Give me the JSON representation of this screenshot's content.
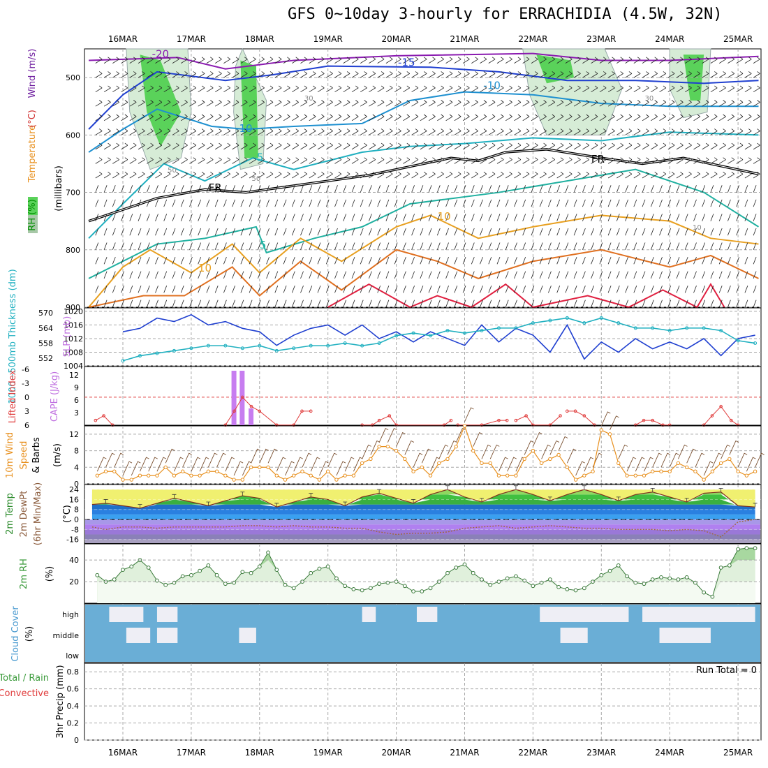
{
  "title": "GFS 0~10day 3-hourly for ERRACHIDIA (4.5W, 32N)",
  "run_total_label": "Run Total = 0",
  "dates": [
    "16MAR",
    "17MAR",
    "18MAR",
    "19MAR",
    "20MAR",
    "21MAR",
    "22MAR",
    "23MAR",
    "24MAR",
    "25MAR"
  ],
  "colors": {
    "grid": "#a8a8a8",
    "pressure_blue": "#1f3fd0",
    "thickness_cyan": "#20b0c0",
    "cape_purple": "#c77df0",
    "lifted_red": "#e03c3c",
    "wind_orange": "#e8901e",
    "rh_green": "#3a9a3a",
    "cloud_blue": "#6aaed6",
    "cloud_white": "#eeeef5"
  },
  "chart_data": [
    {
      "type": "heatmap",
      "name": "upper-air",
      "ylabel_parts": [
        {
          "text": "RH (%)",
          "color": "#009000"
        },
        {
          "text": "Temperature",
          "color": "#e8901e"
        },
        {
          "text": "(°C)",
          "color": "#d03030"
        },
        {
          "text": "Wind (m/s)",
          "color": "#7020a0"
        },
        {
          "text": "(millibars)",
          "color": "#000000"
        }
      ],
      "yticks": [
        500,
        600,
        700,
        800,
        900
      ],
      "ylim": [
        900,
        450
      ],
      "contour_labels": [
        {
          "text": "-20",
          "day": 0.55,
          "p": 465,
          "color": "#8a1ab0"
        },
        {
          "text": "-15",
          "day": 4.15,
          "p": 480,
          "color": "#1f3fd0"
        },
        {
          "text": "-10",
          "day": 5.4,
          "p": 520,
          "color": "#1e90d0"
        },
        {
          "text": "-10",
          "day": 1.77,
          "p": 595,
          "color": "#1e90d0"
        },
        {
          "text": "-5",
          "day": 1.98,
          "p": 645,
          "color": "#20b0c0"
        },
        {
          "text": "FR",
          "day": 6.95,
          "p": 648,
          "color": "#000000"
        },
        {
          "text": "FR",
          "day": 1.35,
          "p": 698,
          "color": "#000000"
        },
        {
          "text": "10",
          "day": 4.7,
          "p": 748,
          "color": "#e8a020"
        },
        {
          "text": "5",
          "day": 2.05,
          "p": 798,
          "color": "#20b0a0"
        },
        {
          "text": "10",
          "day": 1.2,
          "p": 838,
          "color": "#e8a020"
        },
        {
          "text": "30",
          "day": 2.72,
          "p": 540,
          "color": "#888888"
        },
        {
          "text": "30",
          "day": 7.7,
          "p": 540,
          "color": "#888888"
        },
        {
          "text": "50",
          "day": 0.72,
          "p": 665,
          "color": "#888888"
        },
        {
          "text": "50",
          "day": 1.95,
          "p": 680,
          "color": "#888888"
        },
        {
          "text": "10",
          "day": 8.4,
          "p": 765,
          "color": "#888888"
        }
      ]
    },
    {
      "type": "line",
      "name": "slp-thickness",
      "ylabel_left": "1000~500mb Thickness (dm)",
      "ylabel_right": "SLP (mb)",
      "yticks_left": [
        552,
        558,
        564,
        570
      ],
      "yticks_right": [
        1004,
        1008,
        1012,
        1016,
        1020
      ],
      "ylim_left": [
        549,
        572
      ],
      "ylim_right": [
        1004,
        1021
      ],
      "series": [
        {
          "name": "SLP (mb)",
          "axis": "right",
          "color": "#1f3fd0",
          "x": [
            0.0,
            0.25,
            0.5,
            0.75,
            1.0,
            1.25,
            1.5,
            1.75,
            2.0,
            2.25,
            2.5,
            2.75,
            3.0,
            3.25,
            3.5,
            3.75,
            4.0,
            4.25,
            4.5,
            4.75,
            5.0,
            5.25,
            5.5,
            5.75,
            6.0,
            6.25,
            6.5,
            6.75,
            7.0,
            7.25,
            7.5,
            7.75,
            8.0,
            8.25,
            8.5,
            8.75,
            9.0,
            9.25
          ],
          "values": [
            1014,
            1015,
            1018,
            1017,
            1019,
            1016,
            1017,
            1015,
            1014,
            1010,
            1013,
            1015,
            1016,
            1013,
            1016,
            1012,
            1014,
            1011,
            1014,
            1012,
            1010,
            1016,
            1011,
            1015,
            1013,
            1008,
            1016,
            1006,
            1011,
            1008,
            1012,
            1009,
            1011,
            1009,
            1012,
            1007,
            1012,
            1013
          ]
        },
        {
          "name": "1000~500mb Thickness (dm)",
          "axis": "left",
          "color": "#20b0c0",
          "x": [
            0.0,
            0.25,
            0.5,
            0.75,
            1.0,
            1.25,
            1.5,
            1.75,
            2.0,
            2.25,
            2.5,
            2.75,
            3.0,
            3.25,
            3.5,
            3.75,
            4.0,
            4.25,
            4.5,
            4.75,
            5.0,
            5.25,
            5.5,
            5.75,
            6.0,
            6.25,
            6.5,
            6.75,
            7.0,
            7.25,
            7.5,
            7.75,
            8.0,
            8.25,
            8.5,
            8.75,
            9.0,
            9.25
          ],
          "values": [
            551,
            553,
            554,
            555,
            556,
            557,
            557,
            556,
            557,
            555,
            556,
            557,
            557,
            558,
            557,
            558,
            561,
            562,
            561,
            563,
            562,
            563,
            564,
            564,
            566,
            567,
            568,
            566,
            568,
            566,
            564,
            564,
            563,
            564,
            564,
            563,
            559,
            558
          ]
        }
      ]
    },
    {
      "type": "bar",
      "name": "cape-lifted-index",
      "ylabel_left": "Lifted Index",
      "ylabel_right": "CAPE (J/kg)",
      "yticks_left": [
        6,
        3,
        0,
        -3,
        -6
      ],
      "yticks_right": [
        3,
        6,
        9,
        12
      ],
      "ylim_right": [
        0,
        14
      ],
      "series": [
        {
          "name": "CAPE (J/kg)",
          "color": "#c77df0",
          "x": [
            1.63,
            1.75,
            1.88
          ],
          "values": [
            13,
            13,
            4
          ]
        },
        {
          "name": "Lifted Index",
          "color": "#e03c3c",
          "x": [
            -0.4,
            -0.28,
            -0.15,
            1.5,
            1.63,
            1.75,
            1.88,
            2.0,
            2.25,
            2.5,
            2.62,
            2.75,
            3.5,
            3.65,
            3.75,
            3.9,
            4.0,
            4.7,
            4.8,
            4.9,
            5.25,
            5.5,
            5.62,
            5.75,
            5.9,
            6.0,
            6.25,
            6.4,
            6.5,
            6.62,
            6.75,
            6.9,
            7.5,
            7.62,
            7.75,
            7.9,
            8.0,
            8.5,
            8.62,
            8.75,
            8.9,
            9.0
          ],
          "values": [
            5,
            4,
            6,
            6,
            3,
            0,
            2,
            3,
            6,
            6,
            3,
            3,
            6,
            6,
            5,
            4,
            6,
            6,
            5,
            6,
            6,
            5,
            5,
            5,
            4,
            6,
            6,
            4,
            3,
            3,
            4,
            6,
            6,
            5,
            5,
            6,
            6,
            6,
            4,
            2,
            5,
            6
          ]
        }
      ]
    },
    {
      "type": "line",
      "name": "wind-10m",
      "ylabel": "10m Wind Speed & Barbs (m/s)",
      "yticks": [
        0,
        4,
        8,
        12
      ],
      "ylim": [
        0,
        14
      ],
      "series": [
        {
          "name": "10m Wind Speed",
          "color": "#e8901e",
          "x": [
            -0.375,
            -0.25,
            -0.125,
            0.0,
            0.125,
            0.25,
            0.375,
            0.5,
            0.625,
            0.75,
            0.875,
            1.0,
            1.125,
            1.25,
            1.375,
            1.5,
            1.625,
            1.75,
            1.875,
            2.0,
            2.125,
            2.25,
            2.375,
            2.5,
            2.625,
            2.75,
            2.875,
            3.0,
            3.125,
            3.25,
            3.375,
            3.5,
            3.625,
            3.75,
            3.875,
            4.0,
            4.125,
            4.25,
            4.375,
            4.5,
            4.625,
            4.75,
            4.875,
            5.0,
            5.125,
            5.25,
            5.375,
            5.5,
            5.625,
            5.75,
            5.875,
            6.0,
            6.125,
            6.25,
            6.375,
            6.5,
            6.625,
            6.75,
            6.875,
            7.0,
            7.125,
            7.25,
            7.375,
            7.5,
            7.625,
            7.75,
            7.875,
            8.0,
            8.125,
            8.25,
            8.375,
            8.5,
            8.625,
            8.75,
            8.875,
            9.0,
            9.125,
            9.25
          ],
          "values": [
            2,
            3,
            3,
            1,
            1,
            2,
            2,
            2,
            4,
            2,
            3,
            2,
            2,
            3,
            3,
            2,
            1,
            1,
            4,
            4,
            4,
            2,
            1,
            2,
            3,
            2,
            1,
            3,
            1,
            2,
            2,
            5,
            6,
            9,
            9,
            8,
            6,
            3,
            4,
            2,
            5,
            6,
            9,
            14,
            8,
            5,
            5,
            2,
            2,
            2,
            6,
            8,
            5,
            6,
            7,
            4,
            1,
            2,
            3,
            13,
            12,
            5,
            2,
            2,
            2,
            3,
            3,
            3,
            5,
            4,
            3,
            1,
            3,
            5,
            6,
            3,
            2,
            3
          ]
        }
      ]
    },
    {
      "type": "area",
      "name": "temp-dewpoint",
      "ylabel": "2m Temp 2m DewPt (6hr Min/Max) (°C)",
      "yticks": [
        -16,
        -8,
        0,
        8,
        16,
        24
      ],
      "ylim": [
        -19,
        28
      ],
      "series": [
        {
          "name": "2m Temp",
          "color": "#2a8a2a",
          "x": [
            -0.45,
            -0.25,
            0.0,
            0.25,
            0.5,
            0.75,
            1.0,
            1.25,
            1.5,
            1.75,
            2.0,
            2.25,
            2.5,
            2.75,
            3.0,
            3.25,
            3.5,
            3.75,
            4.0,
            4.25,
            4.5,
            4.75,
            5.0,
            5.25,
            5.5,
            5.75,
            6.0,
            6.25,
            6.5,
            6.75,
            7.0,
            7.25,
            7.5,
            7.75,
            8.0,
            8.25,
            8.5,
            8.75,
            9.0,
            9.25
          ],
          "values": [
            12,
            13,
            11,
            9,
            13,
            17,
            14,
            11,
            15,
            19,
            17,
            10,
            14,
            18,
            16,
            11,
            18,
            21,
            17,
            13,
            20,
            24,
            18,
            14,
            20,
            24,
            20,
            15,
            20,
            24,
            20,
            15,
            20,
            22,
            18,
            14,
            21,
            22,
            11,
            10
          ]
        },
        {
          "name": "2m DewPt",
          "color": "#8a5a3a",
          "x": [
            -0.45,
            -0.25,
            0.0,
            0.25,
            0.5,
            0.75,
            1.0,
            1.25,
            1.5,
            1.75,
            2.0,
            2.25,
            2.5,
            2.75,
            3.0,
            3.25,
            3.5,
            3.75,
            4.0,
            4.25,
            4.5,
            4.75,
            5.0,
            5.25,
            5.5,
            5.75,
            6.0,
            6.25,
            6.5,
            6.75,
            7.0,
            7.25,
            7.5,
            7.75,
            8.0,
            8.25,
            8.5,
            8.75,
            9.0,
            9.25
          ],
          "values": [
            -6,
            -8,
            -6,
            -6,
            -7,
            -6,
            -6,
            -6,
            -6,
            -5,
            -5,
            -6,
            -5,
            -6,
            -6,
            -7,
            -7,
            -10,
            -12,
            -11,
            -11,
            -10,
            -7,
            -6,
            -5,
            -7,
            -6,
            -5,
            -6,
            -7,
            -7,
            -8,
            -8,
            -8,
            -9,
            -8,
            -9,
            -14,
            -2,
            0
          ]
        }
      ]
    },
    {
      "type": "area",
      "name": "rh-2m",
      "ylabel": "2m RH (%)",
      "yticks": [
        20,
        40
      ],
      "ylim": [
        0,
        55
      ],
      "series": [
        {
          "name": "2m RH",
          "color": "#3a9a3a",
          "x": [
            -0.375,
            -0.25,
            -0.125,
            0.0,
            0.125,
            0.25,
            0.375,
            0.5,
            0.625,
            0.75,
            0.875,
            1.0,
            1.125,
            1.25,
            1.375,
            1.5,
            1.625,
            1.75,
            1.875,
            2.0,
            2.125,
            2.25,
            2.375,
            2.5,
            2.625,
            2.75,
            2.875,
            3.0,
            3.125,
            3.25,
            3.375,
            3.5,
            3.625,
            3.75,
            3.875,
            4.0,
            4.125,
            4.25,
            4.375,
            4.5,
            4.625,
            4.75,
            4.875,
            5.0,
            5.125,
            5.25,
            5.375,
            5.5,
            5.625,
            5.75,
            5.875,
            6.0,
            6.125,
            6.25,
            6.375,
            6.5,
            6.625,
            6.75,
            6.875,
            7.0,
            7.125,
            7.25,
            7.375,
            7.5,
            7.625,
            7.75,
            7.875,
            8.0,
            8.125,
            8.25,
            8.375,
            8.5,
            8.625,
            8.75,
            8.875,
            9.0,
            9.125,
            9.25
          ],
          "values": [
            26,
            20,
            22,
            31,
            34,
            40,
            33,
            21,
            17,
            19,
            25,
            26,
            30,
            35,
            26,
            18,
            19,
            29,
            28,
            34,
            47,
            31,
            17,
            14,
            20,
            28,
            32,
            34,
            23,
            16,
            13,
            12,
            14,
            18,
            19,
            20,
            16,
            11,
            11,
            14,
            20,
            28,
            33,
            36,
            28,
            22,
            17,
            20,
            23,
            25,
            21,
            16,
            19,
            22,
            15,
            13,
            12,
            14,
            20,
            26,
            30,
            35,
            25,
            19,
            18,
            22,
            24,
            23,
            22,
            24,
            19,
            10,
            6,
            33,
            35,
            50,
            51,
            51
          ]
        }
      ]
    },
    {
      "type": "heatmap",
      "name": "cloud-cover",
      "ylabel": "Cloud Cover (%)",
      "rows": [
        "high",
        "middle",
        "low"
      ]
    },
    {
      "type": "line",
      "name": "precip",
      "ylabel_left": "Total / Rain",
      "ylabel_left2": "Convective",
      "ylabel": "3hr Precip (mm)",
      "yticks": [
        0,
        0.2,
        0.4,
        0.6,
        0.8
      ],
      "ylim": [
        0,
        0.9
      ],
      "values": []
    }
  ]
}
